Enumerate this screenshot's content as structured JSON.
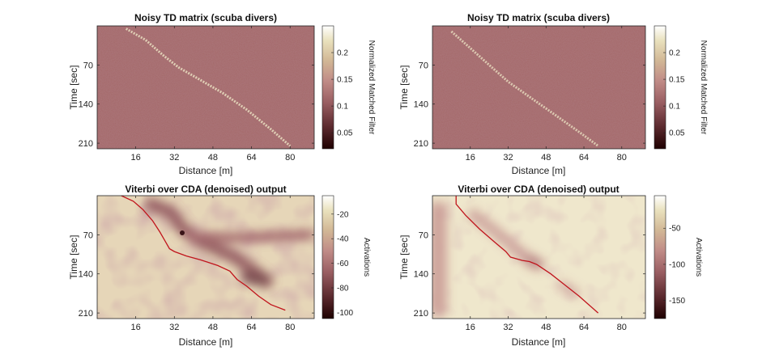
{
  "chart_data": [
    {
      "type": "heatmap",
      "title": "Noisy TD matrix (scuba divers)",
      "xlabel": "Distance [m]",
      "ylabel": "Time [sec]",
      "xticks": [
        16,
        32,
        48,
        64,
        80
      ],
      "yticks": [
        70,
        140,
        210
      ],
      "xlim": [
        0,
        90
      ],
      "ylim": [
        0,
        220
      ],
      "colorbar": {
        "label": "Normalized Matched Filter",
        "ticks": [
          0.05,
          0.1,
          0.15,
          0.2
        ],
        "range": [
          0.02,
          0.25
        ]
      },
      "track": {
        "x": [
          12,
          20,
          28,
          34,
          42,
          52,
          62,
          72,
          80
        ],
        "y": [
          5,
          25,
          55,
          75,
          95,
          120,
          150,
          185,
          215
        ]
      }
    },
    {
      "type": "heatmap",
      "title": "Noisy TD matrix (scuba divers)",
      "xlabel": "Distance [m]",
      "ylabel": "Time [sec]",
      "xticks": [
        16,
        32,
        48,
        64,
        80
      ],
      "yticks": [
        70,
        140,
        210
      ],
      "xlim": [
        0,
        90
      ],
      "ylim": [
        0,
        220
      ],
      "colorbar": {
        "label": "Normalized Matched Filter",
        "ticks": [
          0.05,
          0.1,
          0.15,
          0.2
        ],
        "range": [
          0.02,
          0.25
        ]
      },
      "track": {
        "x": [
          8,
          16,
          24,
          32,
          42,
          52,
          62,
          70
        ],
        "y": [
          10,
          40,
          70,
          100,
          130,
          160,
          190,
          215
        ]
      }
    },
    {
      "type": "heatmap",
      "title": "Viterbi over CDA (denoised) output",
      "xlabel": "Distance [m]",
      "ylabel": "Time [sec]",
      "xticks": [
        16,
        32,
        48,
        64,
        80
      ],
      "yticks": [
        70,
        140,
        210
      ],
      "xlim": [
        0,
        90
      ],
      "ylim": [
        0,
        220
      ],
      "colorbar": {
        "label": "Activations",
        "ticks": [
          -20,
          -40,
          -60,
          -80,
          -100
        ],
        "range": [
          -105,
          -5
        ]
      },
      "path": {
        "x": [
          10,
          15,
          19,
          23,
          26,
          28,
          30,
          32,
          37,
          43,
          50,
          55,
          58,
          62,
          67,
          72,
          78
        ],
        "y": [
          0,
          10,
          25,
          45,
          65,
          80,
          95,
          100,
          108,
          115,
          125,
          135,
          150,
          162,
          180,
          195,
          205
        ]
      }
    },
    {
      "type": "heatmap",
      "title": "Viterbi over CDA (denoised) output",
      "xlabel": "Distance [m]",
      "ylabel": "Time [sec]",
      "xticks": [
        16,
        32,
        48,
        64,
        80
      ],
      "yticks": [
        70,
        140,
        210
      ],
      "xlim": [
        0,
        90
      ],
      "ylim": [
        0,
        220
      ],
      "colorbar": {
        "label": "Activations",
        "ticks": [
          -50,
          -100,
          -150
        ],
        "range": [
          -175,
          -5
        ]
      },
      "path": {
        "x": [
          10,
          10,
          14,
          20,
          26,
          31,
          33,
          38,
          41,
          44,
          50,
          56,
          62,
          66,
          70
        ],
        "y": [
          0,
          15,
          35,
          60,
          82,
          100,
          110,
          116,
          118,
          123,
          140,
          160,
          180,
          195,
          210
        ]
      }
    }
  ]
}
